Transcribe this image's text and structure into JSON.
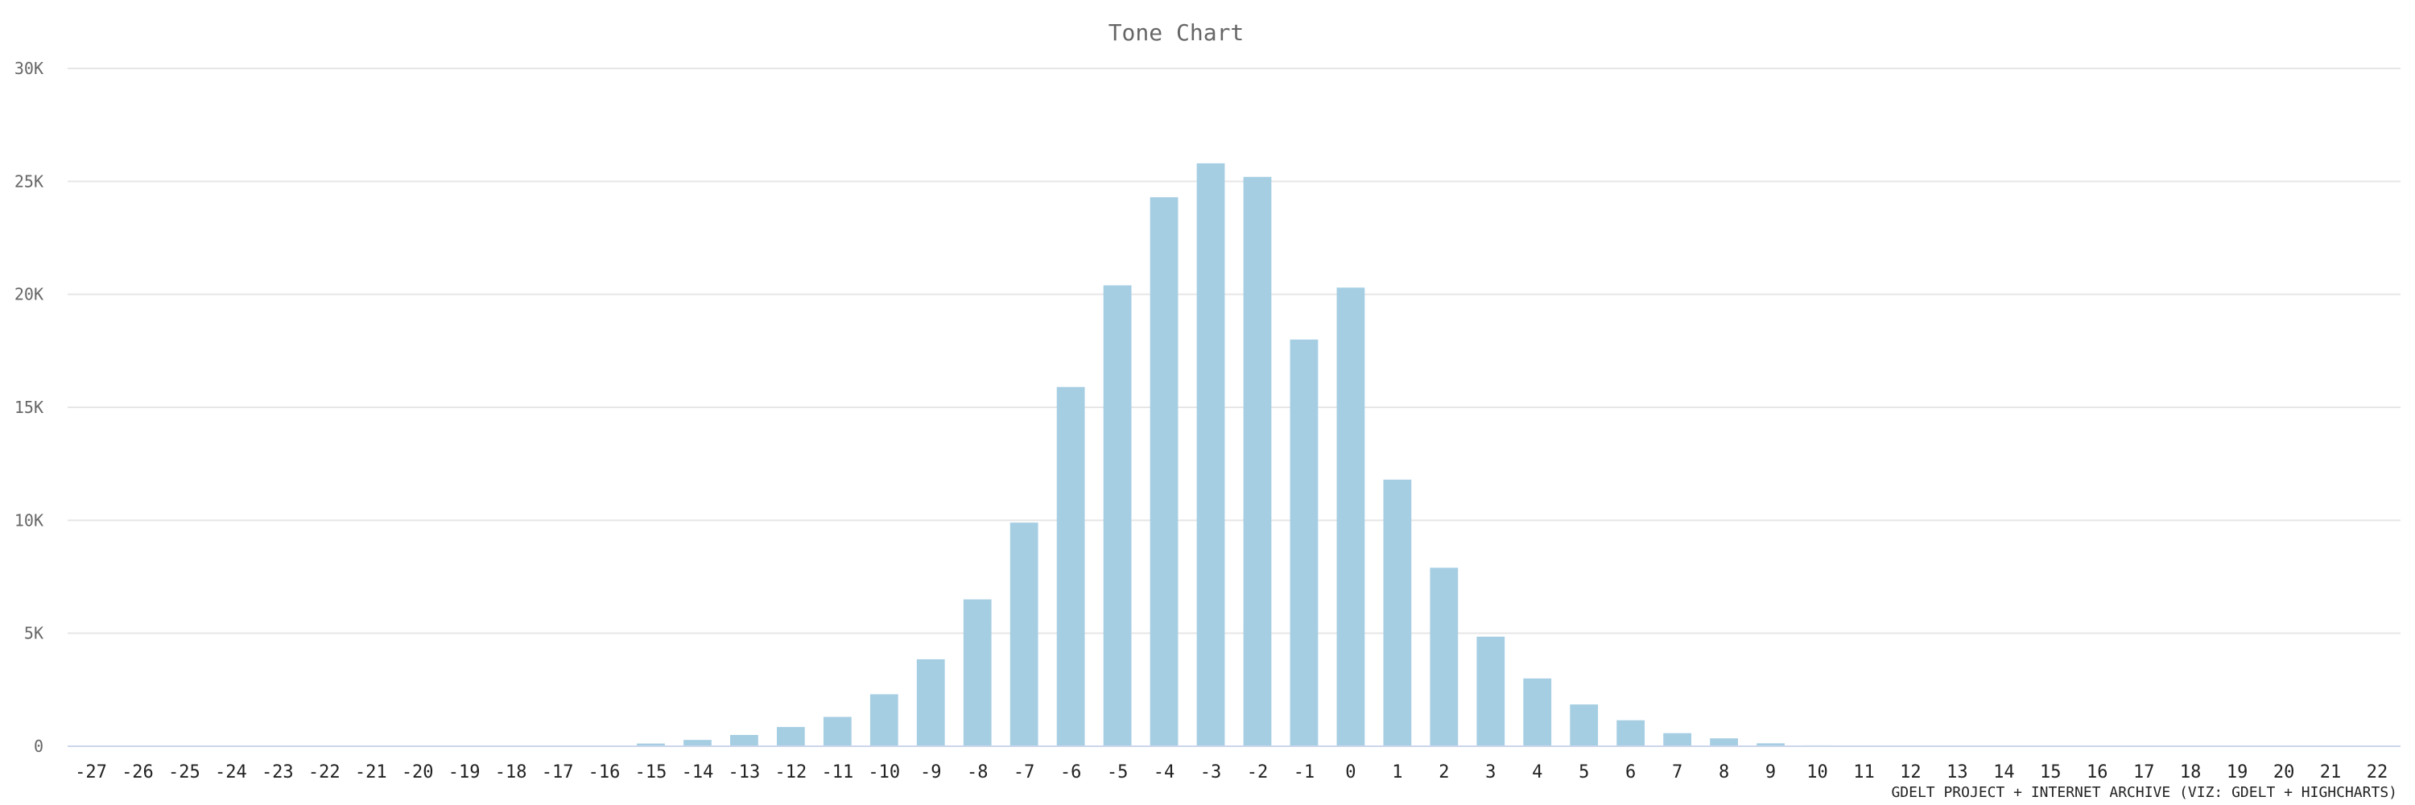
{
  "chart_data": {
    "type": "bar",
    "title": "Tone Chart",
    "credit": "GDELT PROJECT + INTERNET ARCHIVE (VIZ: GDELT + HIGHCHARTS)",
    "xlabel": "",
    "ylabel": "",
    "ylim": [
      0,
      30000
    ],
    "yticks": [
      0,
      5000,
      10000,
      15000,
      20000,
      25000,
      30000
    ],
    "ytick_labels": [
      "0",
      "5K",
      "10K",
      "15K",
      "20K",
      "25K",
      "30K"
    ],
    "grid": true,
    "legend": "none",
    "bar_color": "#a6cee3",
    "categories": [
      "-27",
      "-26",
      "-25",
      "-24",
      "-23",
      "-22",
      "-21",
      "-20",
      "-19",
      "-18",
      "-17",
      "-16",
      "-15",
      "-14",
      "-13",
      "-12",
      "-11",
      "-10",
      "-9",
      "-8",
      "-7",
      "-6",
      "-5",
      "-4",
      "-3",
      "-2",
      "-1",
      "0",
      "1",
      "2",
      "3",
      "4",
      "5",
      "6",
      "7",
      "8",
      "9",
      "10",
      "11",
      "12",
      "13",
      "14",
      "15",
      "16",
      "17",
      "18",
      "19",
      "20",
      "21",
      "22"
    ],
    "values": [
      0,
      0,
      0,
      0,
      0,
      0,
      0,
      0,
      0,
      0,
      10,
      30,
      120,
      280,
      500,
      850,
      1300,
      2300,
      3850,
      6500,
      9900,
      15900,
      20400,
      24300,
      25800,
      25200,
      18000,
      20300,
      11800,
      7900,
      4850,
      3000,
      1850,
      1150,
      580,
      350,
      130,
      40,
      20,
      10,
      5,
      3,
      2,
      1,
      1,
      0,
      0,
      0,
      0,
      0
    ]
  }
}
